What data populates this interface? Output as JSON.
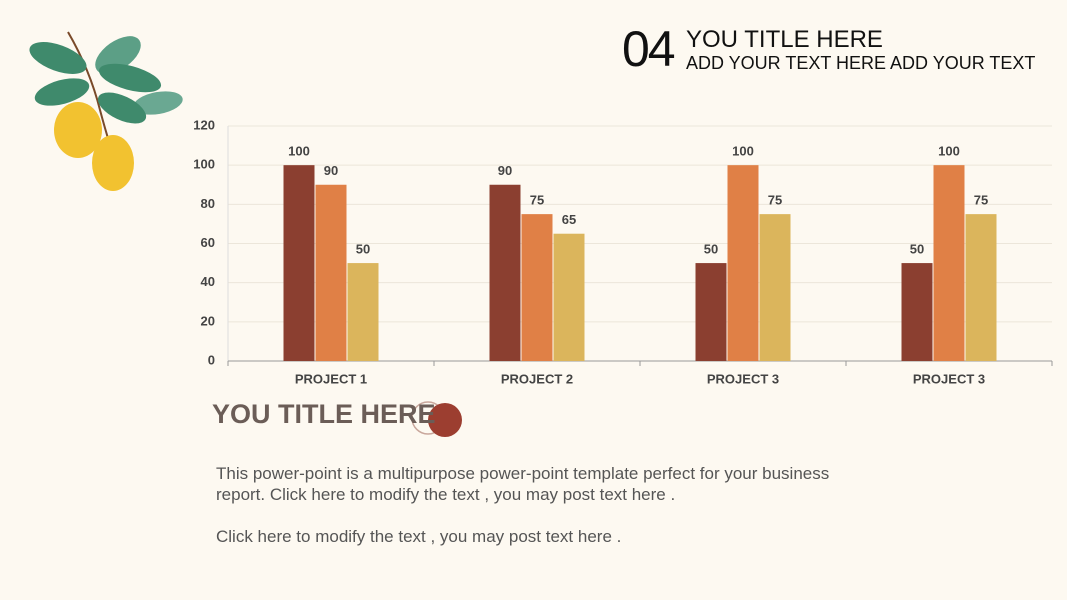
{
  "header": {
    "number": "04",
    "title": "YOU TITLE HERE",
    "subtitle": "ADD YOUR TEXT HERE ADD YOUR TEXT"
  },
  "body": {
    "title": "YOU TITLE HERE",
    "paragraphs": [
      "This power-point is a multipurpose power-point template perfect for your business report. Click here to modify the text , you may post text here .",
      "Click here to modify the text , you may post text here ."
    ]
  },
  "chart_data": {
    "type": "bar",
    "categories": [
      "PROJECT 1",
      "PROJECT 2",
      "PROJECT 3",
      "PROJECT 3"
    ],
    "series": [
      {
        "color": "#8b3f30",
        "values": [
          100,
          90,
          50,
          50
        ]
      },
      {
        "color": "#e08046",
        "values": [
          90,
          75,
          100,
          100
        ]
      },
      {
        "color": "#dbb55c",
        "values": [
          50,
          65,
          75,
          75
        ]
      }
    ],
    "ylim": [
      0,
      120
    ],
    "yticks": [
      0,
      20,
      40,
      60,
      80,
      100,
      120
    ],
    "grid": true
  }
}
